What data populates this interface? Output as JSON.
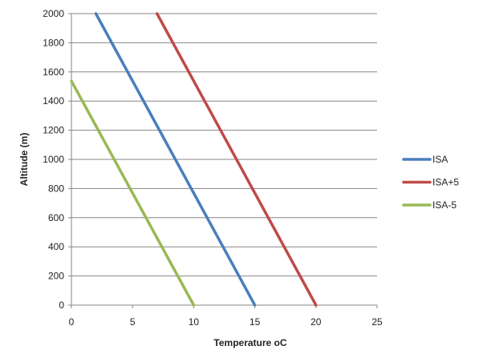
{
  "chart_data": {
    "type": "line",
    "title": "",
    "xlabel": "Temperature oC",
    "ylabel": "Altitude (m)",
    "xlim": [
      0,
      25
    ],
    "ylim": [
      0,
      2000
    ],
    "xticks": [
      "0",
      "5",
      "10",
      "15",
      "20",
      "25"
    ],
    "yticks": [
      "0",
      "200",
      "400",
      "600",
      "800",
      "1000",
      "1200",
      "1400",
      "1600",
      "1800",
      "2000"
    ],
    "grid": "horizontal",
    "legend_position": "right",
    "series": [
      {
        "name": "ISA",
        "color": "#4a7ebb",
        "points": [
          [
            15,
            0
          ],
          [
            2,
            2000
          ]
        ]
      },
      {
        "name": "ISA+5",
        "color": "#be4b48",
        "points": [
          [
            20,
            0
          ],
          [
            7,
            2000
          ]
        ]
      },
      {
        "name": "ISA-5",
        "color": "#98b954",
        "points": [
          [
            10,
            0
          ],
          [
            0,
            1538
          ]
        ]
      }
    ]
  }
}
